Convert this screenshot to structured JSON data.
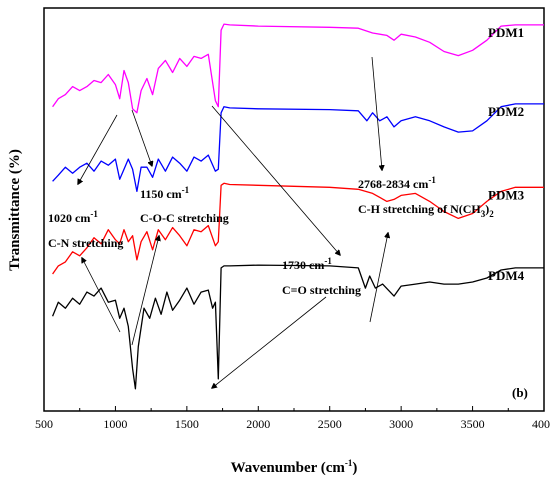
{
  "chart_data": {
    "type": "line",
    "xlabel": "Wavenumber (cm",
    "xlabel_sup": "-1",
    "xlabel_end": ")",
    "ylabel": "Transmittance (%)",
    "panel_label": "(b)",
    "xlim": [
      500,
      4000
    ],
    "x_ticks": [
      500,
      1000,
      1500,
      2000,
      2500,
      3000,
      3500,
      4000
    ],
    "y_ticks_shown": false,
    "colors": {
      "PDM1": "#ff00ff",
      "PDM2": "#0000ff",
      "PDM3": "#ff0000",
      "PDM4": "#000000",
      "axis": "#000000"
    },
    "series": [
      {
        "name": "PDM1",
        "x": [
          560,
          600,
          650,
          700,
          750,
          800,
          850,
          900,
          950,
          1000,
          1030,
          1060,
          1090,
          1120,
          1150,
          1180,
          1220,
          1260,
          1300,
          1350,
          1400,
          1450,
          1500,
          1550,
          1600,
          1650,
          1700,
          1720,
          1740,
          1760,
          1800,
          2000,
          2500,
          2700,
          2800,
          2900,
          2950,
          3000,
          3100,
          3200,
          3300,
          3400,
          3500,
          3600,
          3700,
          3800,
          3900,
          4000
        ],
        "y": [
          7.55,
          7.75,
          7.85,
          8.05,
          7.95,
          8.05,
          8.2,
          8.15,
          8.35,
          8.1,
          7.75,
          8.45,
          8.15,
          7.5,
          7.4,
          7.95,
          8.25,
          7.85,
          8.5,
          8.7,
          8.4,
          8.75,
          8.55,
          8.8,
          8.75,
          8.85,
          7.7,
          7.55,
          9.45,
          9.6,
          9.58,
          9.55,
          9.52,
          9.5,
          9.38,
          9.32,
          9.2,
          9.35,
          9.28,
          9.15,
          8.92,
          8.82,
          8.95,
          9.2,
          9.55,
          9.58,
          9.58,
          9.58
        ]
      },
      {
        "name": "PDM2",
        "x": [
          560,
          600,
          650,
          700,
          750,
          800,
          850,
          900,
          950,
          1000,
          1030,
          1060,
          1090,
          1120,
          1150,
          1180,
          1220,
          1260,
          1300,
          1350,
          1400,
          1450,
          1500,
          1550,
          1600,
          1650,
          1700,
          1720,
          1740,
          1760,
          1800,
          2000,
          2500,
          2700,
          2760,
          2800,
          2850,
          2900,
          2950,
          3000,
          3100,
          3200,
          3300,
          3400,
          3500,
          3600,
          3700,
          3800,
          3900,
          4000
        ],
        "y": [
          5.7,
          5.85,
          6.05,
          5.9,
          6.05,
          6.15,
          5.95,
          6.2,
          6.1,
          6.25,
          5.75,
          6.0,
          6.25,
          6.0,
          5.45,
          6.05,
          6.05,
          5.8,
          6.25,
          5.95,
          6.3,
          6.15,
          5.95,
          6.3,
          6.2,
          6.35,
          5.95,
          6.0,
          7.4,
          7.55,
          7.52,
          7.5,
          7.48,
          7.45,
          7.2,
          7.4,
          7.2,
          7.3,
          7.05,
          7.2,
          7.3,
          7.2,
          7.05,
          6.92,
          6.95,
          7.2,
          7.55,
          7.62,
          7.62,
          7.62
        ]
      },
      {
        "name": "PDM3",
        "x": [
          560,
          600,
          650,
          700,
          750,
          800,
          850,
          900,
          950,
          1000,
          1030,
          1060,
          1090,
          1120,
          1150,
          1180,
          1220,
          1260,
          1300,
          1350,
          1400,
          1450,
          1500,
          1550,
          1600,
          1650,
          1700,
          1720,
          1740,
          1760,
          1800,
          2000,
          2500,
          2700,
          2800,
          2900,
          2950,
          3000,
          3100,
          3200,
          3300,
          3400,
          3500,
          3600,
          3700,
          3800,
          3900,
          4000
        ],
        "y": [
          3.4,
          3.6,
          3.7,
          3.95,
          3.85,
          4.05,
          4.3,
          4.15,
          4.5,
          4.25,
          4.15,
          4.5,
          4.2,
          4.35,
          3.75,
          4.2,
          4.45,
          4.0,
          4.5,
          4.25,
          4.55,
          4.35,
          4.1,
          4.5,
          4.45,
          4.6,
          4.1,
          4.2,
          5.6,
          5.65,
          5.62,
          5.6,
          5.55,
          5.5,
          5.4,
          5.2,
          5.25,
          5.35,
          5.4,
          5.2,
          4.95,
          4.78,
          4.9,
          5.2,
          5.45,
          5.55,
          5.55,
          5.55
        ]
      },
      {
        "name": "PDM4",
        "x": [
          560,
          600,
          650,
          700,
          750,
          800,
          850,
          900,
          950,
          1000,
          1030,
          1060,
          1090,
          1120,
          1140,
          1160,
          1200,
          1240,
          1280,
          1320,
          1360,
          1400,
          1450,
          1500,
          1550,
          1600,
          1650,
          1680,
          1700,
          1720,
          1740,
          1760,
          1800,
          2000,
          2500,
          2700,
          2750,
          2780,
          2820,
          2870,
          2950,
          3000,
          3100,
          3200,
          3300,
          3400,
          3500,
          3600,
          3700,
          3800,
          3900,
          4000
        ],
        "y": [
          2.35,
          2.7,
          2.55,
          2.8,
          2.65,
          2.95,
          2.85,
          3.05,
          2.7,
          2.75,
          2.3,
          2.55,
          2.1,
          1.05,
          0.55,
          1.6,
          2.55,
          2.3,
          2.8,
          2.4,
          2.95,
          2.5,
          2.75,
          3.05,
          2.65,
          2.95,
          3.0,
          2.55,
          2.7,
          0.8,
          3.55,
          3.6,
          3.6,
          3.62,
          3.6,
          3.55,
          3.05,
          3.35,
          3.05,
          3.15,
          2.85,
          3.1,
          3.15,
          3.2,
          3.15,
          3.15,
          3.2,
          3.3,
          3.5,
          3.55,
          3.55,
          3.55
        ]
      }
    ],
    "annotations": [
      {
        "text": "1020 cm",
        "sup": "-1"
      },
      {
        "text": "C-N stretching"
      },
      {
        "text": "1150 cm",
        "sup": "-1"
      },
      {
        "text": "C-O-C stretching"
      },
      {
        "text": "1730 cm",
        "sup": "-1"
      },
      {
        "text": "C=O stretching"
      },
      {
        "text": "2768-2834 cm",
        "sup": "-1"
      },
      {
        "text": "C-H stretching of N(CH",
        "sub": "3",
        "end": ")",
        "sub2": "2"
      }
    ],
    "grid": false,
    "legend": "series labels at right end of each curve"
  }
}
